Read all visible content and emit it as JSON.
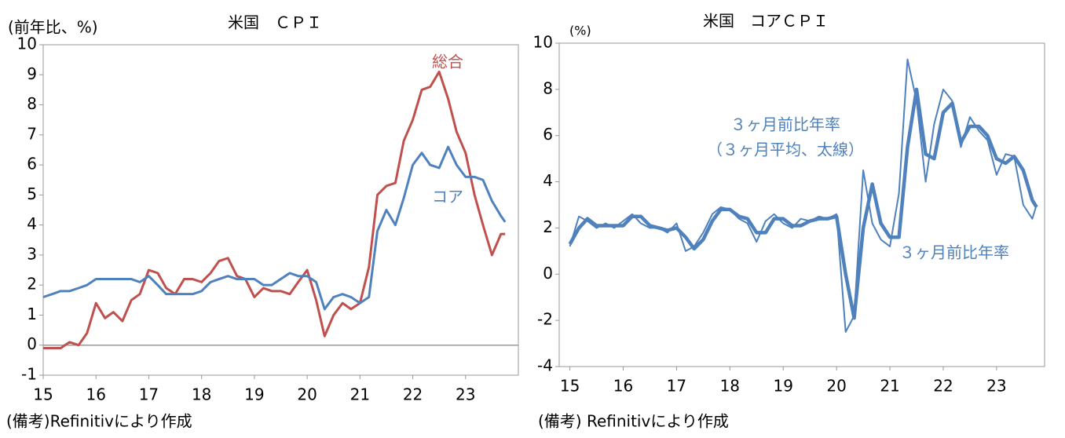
{
  "chart_data": [
    {
      "type": "line",
      "title": "米国　ＣＰＩ",
      "y_label": "(前年比、%)",
      "note": "(備考)Refinitivにより作成",
      "x": [
        15,
        15.17,
        15.33,
        15.5,
        15.67,
        15.83,
        16,
        16.17,
        16.33,
        16.5,
        16.67,
        16.83,
        17,
        17.17,
        17.33,
        17.5,
        17.67,
        17.83,
        18,
        18.17,
        18.33,
        18.5,
        18.67,
        18.83,
        19,
        19.17,
        19.33,
        19.5,
        19.67,
        19.83,
        20,
        20.17,
        20.33,
        20.5,
        20.67,
        20.83,
        21,
        21.17,
        21.33,
        21.5,
        21.67,
        21.83,
        22,
        22.17,
        22.33,
        22.5,
        22.67,
        22.83,
        23,
        23.17,
        23.33,
        23.5,
        23.67,
        23.75
      ],
      "xlim": [
        15,
        24
      ],
      "xticks": [
        15,
        16,
        17,
        18,
        19,
        20,
        21,
        22,
        23
      ],
      "ylim": [
        -1,
        10
      ],
      "yticks": [
        -1,
        0,
        1,
        2,
        3,
        4,
        5,
        6,
        7,
        8,
        9,
        10
      ],
      "zero_line": true,
      "series": [
        {
          "name": "総合",
          "color": "#c0504d",
          "values": [
            -0.1,
            -0.1,
            -0.1,
            0.1,
            0.0,
            0.4,
            1.4,
            0.9,
            1.1,
            0.8,
            1.5,
            1.7,
            2.5,
            2.4,
            1.9,
            1.7,
            2.2,
            2.2,
            2.1,
            2.4,
            2.8,
            2.9,
            2.3,
            2.2,
            1.6,
            1.9,
            1.8,
            1.8,
            1.7,
            2.1,
            2.5,
            1.5,
            0.3,
            1.0,
            1.4,
            1.2,
            1.4,
            2.6,
            5.0,
            5.3,
            5.4,
            6.8,
            7.5,
            8.5,
            8.6,
            9.1,
            8.2,
            7.1,
            6.4,
            5.0,
            4.0,
            3.0,
            3.7,
            3.7
          ]
        },
        {
          "name": "コア",
          "color": "#4f81bd",
          "values": [
            1.6,
            1.7,
            1.8,
            1.8,
            1.9,
            2.0,
            2.2,
            2.2,
            2.2,
            2.2,
            2.2,
            2.1,
            2.3,
            2.0,
            1.7,
            1.7,
            1.7,
            1.7,
            1.8,
            2.1,
            2.2,
            2.3,
            2.2,
            2.2,
            2.2,
            2.0,
            2.0,
            2.2,
            2.4,
            2.3,
            2.3,
            2.1,
            1.2,
            1.6,
            1.7,
            1.6,
            1.4,
            1.6,
            3.8,
            4.5,
            4.0,
            4.9,
            6.0,
            6.4,
            6.0,
            5.9,
            6.6,
            6.0,
            5.6,
            5.6,
            5.5,
            4.8,
            4.3,
            4.1
          ]
        }
      ]
    },
    {
      "type": "line",
      "title": "米国　コアＣＰＩ",
      "y_label": "(%)",
      "note": "(備考) Refinitivにより作成",
      "annotations": [
        "３ヶ月前比年率",
        "（３ヶ月平均、太線）",
        "３ヶ月前比年率"
      ],
      "x": [
        15,
        15.17,
        15.33,
        15.5,
        15.67,
        15.83,
        16,
        16.17,
        16.33,
        16.5,
        16.67,
        16.83,
        17,
        17.17,
        17.33,
        17.5,
        17.67,
        17.83,
        18,
        18.17,
        18.33,
        18.5,
        18.67,
        18.83,
        19,
        19.17,
        19.33,
        19.5,
        19.67,
        19.83,
        20,
        20.17,
        20.33,
        20.5,
        20.67,
        20.83,
        21,
        21.17,
        21.33,
        21.5,
        21.67,
        21.83,
        22,
        22.17,
        22.33,
        22.5,
        22.67,
        22.83,
        23,
        23.17,
        23.33,
        23.5,
        23.67,
        23.75
      ],
      "xlim": [
        14.8,
        23.9
      ],
      "xticks": [
        15,
        16,
        17,
        18,
        19,
        20,
        21,
        22,
        23
      ],
      "ylim": [
        -4,
        10
      ],
      "yticks": [
        -4,
        -2,
        0,
        2,
        4,
        6,
        8,
        10
      ],
      "zero_line": false,
      "series": [
        {
          "color": "#4f81bd",
          "width": 2,
          "values": [
            1.2,
            2.5,
            2.3,
            2.0,
            2.2,
            2.0,
            2.3,
            2.6,
            2.2,
            2.0,
            2.0,
            1.8,
            2.2,
            1.0,
            1.2,
            1.8,
            2.6,
            2.9,
            2.8,
            2.4,
            2.2,
            1.4,
            2.3,
            2.6,
            2.2,
            2.0,
            2.4,
            2.3,
            2.5,
            2.4,
            2.6,
            -2.5,
            -1.8,
            4.5,
            2.2,
            1.5,
            1.2,
            3.5,
            9.3,
            7.5,
            4.0,
            6.5,
            8.0,
            7.5,
            5.5,
            6.8,
            6.2,
            5.8,
            4.3,
            5.2,
            5.1,
            3.0,
            2.4,
            3.0
          ]
        },
        {
          "color": "#4f81bd",
          "width": 4.5,
          "values": [
            1.3,
            2.0,
            2.4,
            2.1,
            2.1,
            2.1,
            2.1,
            2.5,
            2.5,
            2.1,
            2.0,
            1.9,
            2.0,
            1.6,
            1.1,
            1.5,
            2.3,
            2.8,
            2.8,
            2.5,
            2.4,
            1.8,
            1.8,
            2.4,
            2.4,
            2.1,
            2.1,
            2.3,
            2.4,
            2.4,
            2.5,
            0.0,
            -1.9,
            2.0,
            3.9,
            2.2,
            1.6,
            1.6,
            5.5,
            8.0,
            5.2,
            5.0,
            7.0,
            7.4,
            5.7,
            6.4,
            6.4,
            6.0,
            5.0,
            4.8,
            5.1,
            4.5,
            3.2,
            2.9
          ]
        }
      ]
    }
  ]
}
